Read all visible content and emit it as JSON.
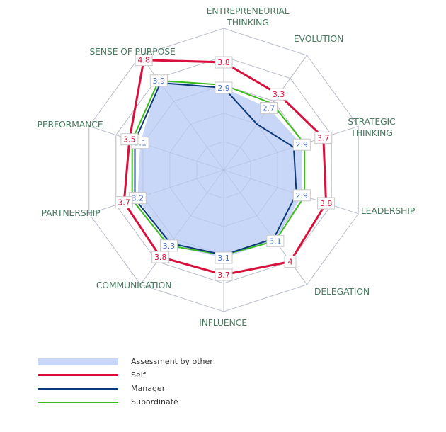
{
  "chart_data": {
    "type": "radar",
    "title": "",
    "scale": {
      "min": 0,
      "max": 5,
      "rings": 5,
      "grid": true
    },
    "axes": [
      [
        "ENTREPRENEURIAL",
        "THINKING"
      ],
      [
        "EVOLUTION"
      ],
      [
        "STRATEGIC",
        "THINKING"
      ],
      [
        "LEADERSHIP"
      ],
      [
        "DELEGATION"
      ],
      [
        "INFLUENCE"
      ],
      [
        "COMMUNICATION"
      ],
      [
        "PARTNERSHIP"
      ],
      [
        "PERFORMANCE"
      ],
      [
        "SENSE OF PURPOSE"
      ]
    ],
    "categories": [
      "Entrepreneurial Thinking",
      "Evolution",
      "Strategic Thinking",
      "Leadership",
      "Delegation",
      "Influence",
      "Communication",
      "Partnership",
      "Performance",
      "Sense of Purpose"
    ],
    "series": [
      {
        "name": "Assessment by other",
        "style": "area",
        "color": "#c8d6f8",
        "labeled": true,
        "label_color": "#4a6fd1",
        "values": [
          2.9,
          2.7,
          2.9,
          2.9,
          3.1,
          3.1,
          3.3,
          3.2,
          3.1,
          3.9
        ]
      },
      {
        "name": "Self",
        "style": "line",
        "color": "#d8103c",
        "width": 3,
        "labeled": true,
        "label_color": "#d8103c",
        "values": [
          3.8,
          3.3,
          3.7,
          3.8,
          4,
          3.7,
          3.8,
          3.7,
          3.5,
          4.8
        ]
      },
      {
        "name": "Manager",
        "style": "line",
        "color": "#0c3a78",
        "width": 2,
        "labeled": false,
        "values": [
          2.9,
          2.0,
          2.6,
          2.7,
          3.0,
          3.0,
          3.2,
          3.3,
          3.3,
          3.8
        ]
      },
      {
        "name": "Subordinate",
        "style": "line",
        "color": "#3cbc1c",
        "width": 2,
        "labeled": false,
        "values": [
          3.0,
          2.9,
          3.0,
          3.0,
          3.1,
          3.0,
          3.3,
          3.4,
          3.4,
          3.9
        ]
      }
    ],
    "legend_position": "bottom-left"
  },
  "legend": {
    "items": [
      {
        "label": "Assessment by other"
      },
      {
        "label": "Self"
      },
      {
        "label": "Manager"
      },
      {
        "label": "Subordinate"
      }
    ]
  },
  "colors": {
    "grid": "#c9c9c9",
    "inner_grid": "#a9b4cc",
    "axis_label": "#4a7a62"
  }
}
